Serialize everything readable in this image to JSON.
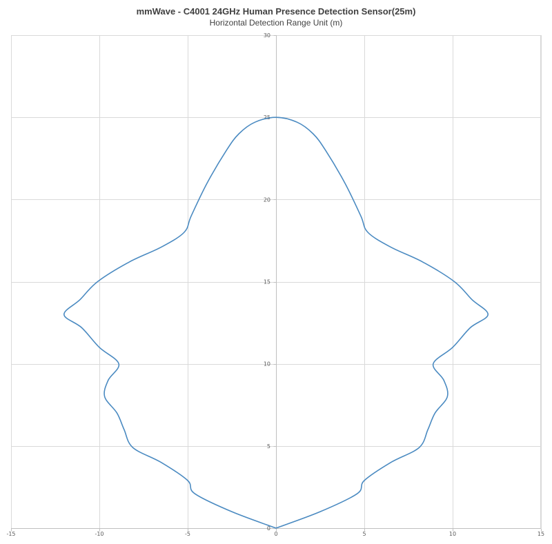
{
  "chart_data": {
    "type": "line",
    "title": "mmWave - C4001 24GHz Human Presence Detection Sensor(25m)",
    "subtitle": "Horizontal Detection Range Unit (m)",
    "xlabel": "",
    "ylabel": "",
    "xlim": [
      -15,
      15
    ],
    "ylim": [
      0,
      30
    ],
    "x_ticks": [
      -15,
      -10,
      -5,
      0,
      5,
      10,
      15
    ],
    "y_ticks": [
      0,
      5,
      10,
      15,
      20,
      25,
      30
    ],
    "x_tick_labels": [
      "-15",
      "-10",
      "-5",
      "0",
      "5",
      "10",
      "15"
    ],
    "y_tick_labels": [
      "0",
      "5",
      "10",
      "15",
      "20",
      "25",
      "30"
    ],
    "grid": true,
    "legend": "none",
    "series_color": "#4a8ac1",
    "series": [
      {
        "points": [
          [
            0,
            0
          ],
          [
            2.5,
            1
          ],
          [
            4.6,
            2.1
          ],
          [
            5,
            2.9
          ],
          [
            6.5,
            4
          ],
          [
            8.1,
            4.9
          ],
          [
            8.6,
            6
          ],
          [
            9,
            7
          ],
          [
            9.7,
            8
          ],
          [
            9.5,
            9
          ],
          [
            8.9,
            10
          ],
          [
            10,
            11
          ],
          [
            11,
            12.2
          ],
          [
            12,
            13
          ],
          [
            11.1,
            13.9
          ],
          [
            10.1,
            15
          ],
          [
            8.3,
            16.2
          ],
          [
            6.5,
            17.1
          ],
          [
            5.2,
            18
          ],
          [
            4.8,
            19
          ],
          [
            3.9,
            21
          ],
          [
            2.8,
            23
          ],
          [
            2.1,
            24
          ],
          [
            1.2,
            24.7
          ],
          [
            0,
            25
          ],
          [
            -1.2,
            24.7
          ],
          [
            -2.1,
            24
          ],
          [
            -2.8,
            23
          ],
          [
            -3.9,
            21
          ],
          [
            -4.8,
            19
          ],
          [
            -5.2,
            18
          ],
          [
            -6.5,
            17.1
          ],
          [
            -8.3,
            16.2
          ],
          [
            -10.1,
            15
          ],
          [
            -11.1,
            13.9
          ],
          [
            -12,
            13
          ],
          [
            -11,
            12.2
          ],
          [
            -10,
            11
          ],
          [
            -8.9,
            10
          ],
          [
            -9.5,
            9
          ],
          [
            -9.7,
            8
          ],
          [
            -9,
            7
          ],
          [
            -8.6,
            6
          ],
          [
            -8.1,
            4.9
          ],
          [
            -6.5,
            4
          ],
          [
            -5,
            2.9
          ],
          [
            -4.6,
            2.1
          ],
          [
            -2.5,
            1
          ],
          [
            0,
            0
          ]
        ]
      }
    ]
  }
}
